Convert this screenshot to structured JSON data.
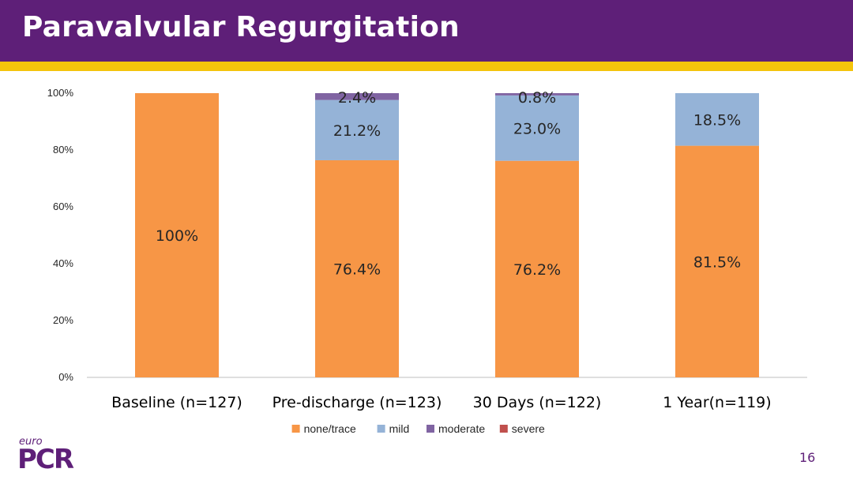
{
  "slide": {
    "title": "Paravalvular Regurgitation",
    "page_number": "16"
  },
  "logo": {
    "small_text": "euro",
    "main_text": "PCR"
  },
  "colors": {
    "header_bg": "#5e1f78",
    "header_stripe": "#f4c40c",
    "none_trace": "#f79646",
    "mild": "#95b3d7",
    "moderate": "#8064a2",
    "severe": "#c0504d"
  },
  "chart_data": {
    "type": "bar",
    "stacked": true,
    "categories": [
      "Baseline (n=127)",
      "Pre-discharge (n=123)",
      "30 Days (n=122)",
      "1 Year(n=119)"
    ],
    "series": [
      {
        "name": "none/trace",
        "values": [
          100,
          76.4,
          76.2,
          81.5
        ],
        "labels": [
          "100%",
          "76.4%",
          "76.2%",
          "81.5%"
        ]
      },
      {
        "name": "mild",
        "values": [
          0,
          21.2,
          23.0,
          18.5
        ],
        "labels": [
          "",
          "21.2%",
          "23.0%",
          "18.5%"
        ]
      },
      {
        "name": "moderate",
        "values": [
          0,
          2.4,
          0.8,
          0
        ],
        "labels": [
          "",
          "2.4%",
          "0.8%",
          ""
        ]
      },
      {
        "name": "severe",
        "values": [
          0,
          0,
          0,
          0
        ],
        "labels": [
          "",
          "",
          "",
          ""
        ]
      }
    ],
    "ylim": [
      0,
      100
    ],
    "yticks": [
      "0%",
      "20%",
      "40%",
      "60%",
      "80%",
      "100%"
    ],
    "legend_position": "bottom",
    "grid": false
  }
}
